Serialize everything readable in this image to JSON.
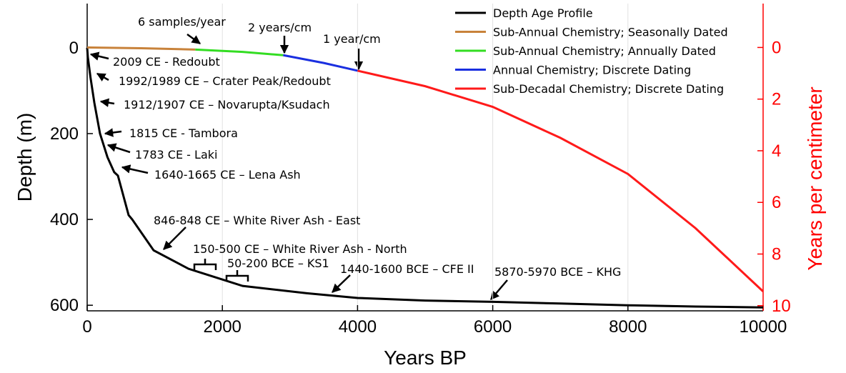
{
  "chart_data": {
    "type": "line",
    "xlabel": "Years BP",
    "ylabel": "Depth (m)",
    "y2label": "Years per centimeter",
    "xlim": [
      0,
      10000
    ],
    "xticks": [
      0,
      2000,
      4000,
      6000,
      8000,
      10000
    ],
    "ylim": [
      -103,
      613
    ],
    "yticks": [
      0,
      200,
      400,
      600
    ],
    "y2lim": [
      -1.7,
      10.2
    ],
    "y2ticks": [
      0,
      2,
      4,
      6,
      8,
      10
    ],
    "y_inverted": true,
    "y2_color": "#ff0000",
    "grid": "x",
    "legend": "upper right",
    "series": [
      {
        "name": "Depth Age Profile",
        "color": "#000000",
        "x": [
          0,
          10,
          50,
          106,
          190,
          300,
          400,
          455,
          613,
          666,
          983,
          1500,
          2300,
          3250,
          4000,
          5000,
          6000,
          7000,
          8000,
          9000,
          10000
        ],
        "values": [
          0,
          22,
          70,
          128,
          200,
          255,
          290,
          298,
          390,
          400,
          472,
          515,
          555,
          572,
          583,
          589,
          592,
          596,
          600,
          603,
          605
        ]
      },
      {
        "name": "Sub-Annual Chemistry; Seasonally Dated",
        "color": "#c8823a",
        "axis": "y2",
        "x": [
          0,
          800,
          1600
        ],
        "values": [
          0,
          0.03,
          0.08
        ]
      },
      {
        "name": "Sub-Annual Chemistry; Annually Dated",
        "color": "#33dd22",
        "axis": "y2",
        "x": [
          1600,
          2300,
          2900
        ],
        "values": [
          0.08,
          0.17,
          0.3
        ]
      },
      {
        "name": "Annual Chemistry; Discrete Dating",
        "color": "#1a2fe0",
        "axis": "y2",
        "x": [
          2900,
          3500,
          4000
        ],
        "values": [
          0.3,
          0.6,
          0.9
        ]
      },
      {
        "name": "Sub-Decadal Chemistry; Discrete Dating",
        "color": "#ff1a1a",
        "axis": "y2",
        "x": [
          4000,
          5000,
          6000,
          7000,
          8000,
          9000,
          10000
        ],
        "values": [
          0.9,
          1.5,
          2.3,
          3.5,
          4.9,
          7.0,
          9.45
        ]
      }
    ],
    "annotations": [
      "6 samples/year",
      "2 years/cm",
      "1 year/cm",
      "2009 CE - Redoubt",
      "1992/1989 CE – Crater Peak/Redoubt",
      "1912/1907 CE – Novarupta/Ksudach",
      "1815 CE - Tambora",
      "1783 CE - Laki",
      "1640-1665 CE – Lena Ash",
      "846-848 CE – White River Ash - East",
      "150-500 CE – White River Ash - North",
      "50-200 BCE – KS1",
      "1440-1600 BCE – CFE II",
      "5870-5970 BCE – KHG"
    ]
  }
}
